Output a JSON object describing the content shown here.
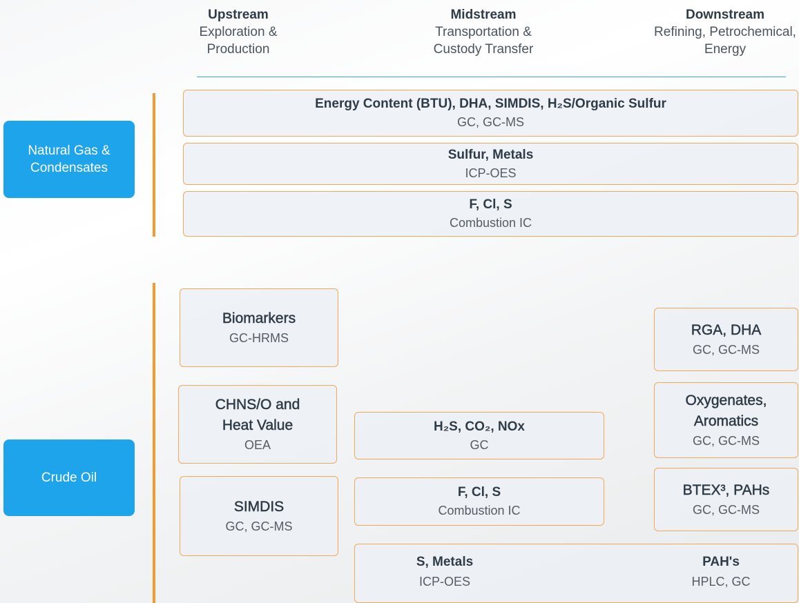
{
  "header": {
    "columns": [
      {
        "title": "Upstream",
        "subtitle": [
          "Exploration &",
          "Production"
        ]
      },
      {
        "title": "Midstream",
        "subtitle": [
          "Transportation &",
          "Custody Transfer"
        ]
      },
      {
        "title": "Downstream",
        "subtitle": [
          "Refining, Petrochemical,",
          "Energy"
        ]
      }
    ]
  },
  "groups": [
    {
      "label": [
        "Natural Gas &",
        "Condensates"
      ],
      "boxes": [
        {
          "title": [
            "Energy Content (BTU), DHA, SIMDIS, H₂S/Organic Sulfur"
          ],
          "detail": "GC, GC-MS"
        },
        {
          "title": [
            "Sulfur, Metals"
          ],
          "detail": "ICP-OES"
        },
        {
          "title": [
            "F, Cl, S"
          ],
          "detail": "Combustion IC"
        }
      ]
    },
    {
      "label": [
        "Crude Oil"
      ],
      "boxes": [
        {
          "title": [
            "Biomarkers"
          ],
          "detail": "GC-HRMS"
        },
        {
          "title": [
            "CHNS/O and",
            "Heat Value"
          ],
          "detail": "OEA"
        },
        {
          "title": [
            "SIMDIS"
          ],
          "detail": "GC, GC-MS"
        },
        {
          "title": [
            "H₂S, CO₂, NOx"
          ],
          "detail": "GC"
        },
        {
          "title": [
            "F, Cl, S"
          ],
          "detail": "Combustion IC"
        },
        {
          "title": [
            "RGA, DHA"
          ],
          "detail": "GC, GC-MS"
        },
        {
          "title": [
            "Oxygenates,",
            "Aromatics"
          ],
          "detail": "GC, GC-MS"
        },
        {
          "title": [
            "BTEX³, PAHs"
          ],
          "detail": "GC, GC-MS"
        },
        {
          "items": [
            {
              "title": "S, Metals",
              "detail": "ICP-OES"
            },
            {
              "title": "PAH's",
              "detail": "HPLC, GC"
            }
          ]
        }
      ]
    }
  ]
}
